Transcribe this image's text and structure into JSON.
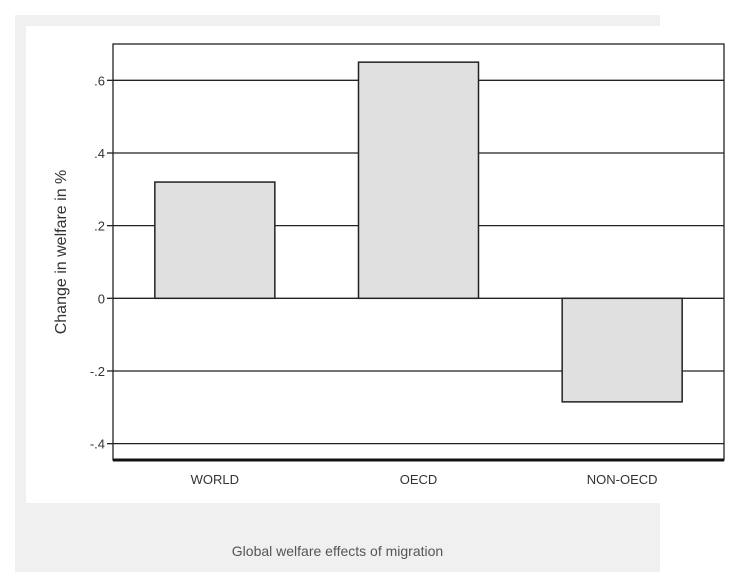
{
  "chart_data": {
    "type": "bar",
    "title": "",
    "caption": "Global welfare effects of migration",
    "xlabel": "",
    "ylabel": "Change in welfare in %",
    "categories": [
      "WORLD",
      "OECD",
      "NON-OECD"
    ],
    "values": [
      0.32,
      0.65,
      -0.285
    ],
    "ylim": [
      -0.445,
      0.7
    ],
    "yticks": [
      -0.4,
      -0.2,
      0,
      0.2,
      0.4,
      0.6
    ],
    "ytick_labels": [
      "-.4",
      "-.2",
      "0",
      ".2",
      ".4",
      ".6"
    ],
    "grid": true,
    "bar_color": "#e0e0e0"
  }
}
